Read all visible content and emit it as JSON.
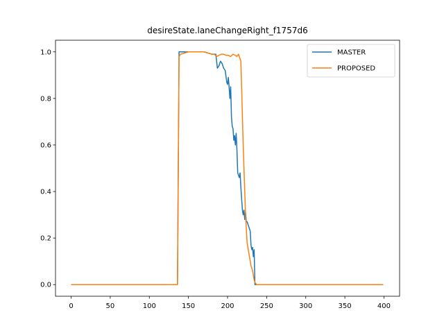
{
  "chart_data": {
    "type": "line",
    "title": "desireState.laneChangeRight_f1757d6",
    "xlabel": "",
    "ylabel": "",
    "xlim": [
      -20,
      420
    ],
    "ylim": [
      -0.05,
      1.05
    ],
    "xticks": [
      0,
      50,
      100,
      150,
      200,
      250,
      300,
      350,
      400
    ],
    "yticks": [
      0.0,
      0.2,
      0.4,
      0.6,
      0.8,
      1.0
    ],
    "xtick_labels": [
      "0",
      "50",
      "100",
      "150",
      "200",
      "250",
      "300",
      "350",
      "400"
    ],
    "ytick_labels": [
      "0.0",
      "0.2",
      "0.4",
      "0.6",
      "0.8",
      "1.0"
    ],
    "grid": false,
    "legend_position": "top-right",
    "series": [
      {
        "name": "MASTER",
        "color": "#1f77b4",
        "x": [
          0,
          50,
          100,
          136,
          137,
          138,
          140,
          150,
          160,
          170,
          180,
          185,
          187,
          189,
          191,
          193,
          195,
          197,
          199,
          200,
          201,
          202,
          203,
          204,
          205,
          206,
          207,
          208,
          209,
          210,
          211,
          212,
          213,
          214,
          215,
          216,
          217,
          218,
          219,
          220,
          221,
          222,
          223,
          224,
          225,
          226,
          227,
          228,
          229,
          230,
          231,
          232,
          233,
          234,
          235,
          236,
          237,
          240,
          250,
          300,
          350,
          399
        ],
        "values": [
          0.0,
          0.0,
          0.0,
          0.0,
          0.5,
          1.0,
          1.0,
          1.0,
          1.0,
          1.0,
          0.99,
          0.99,
          0.93,
          0.94,
          0.96,
          0.95,
          0.93,
          0.92,
          0.87,
          0.86,
          0.89,
          0.85,
          0.8,
          0.85,
          0.72,
          0.68,
          0.67,
          0.62,
          0.64,
          0.6,
          0.65,
          0.58,
          0.48,
          0.47,
          0.46,
          0.48,
          0.42,
          0.37,
          0.32,
          0.3,
          0.32,
          0.28,
          0.31,
          0.27,
          0.27,
          0.26,
          0.25,
          0.24,
          0.23,
          0.17,
          0.15,
          0.16,
          0.12,
          0.15,
          0.0,
          0.0,
          0.0,
          0.0,
          0.0,
          0.0,
          0.0,
          0.0
        ]
      },
      {
        "name": "PROPOSED",
        "color": "#ff7f0e",
        "x": [
          0,
          50,
          100,
          136,
          137,
          138,
          140,
          150,
          160,
          170,
          180,
          183,
          186,
          189,
          192,
          195,
          198,
          201,
          204,
          207,
          210,
          212,
          214,
          216,
          217,
          218,
          219,
          220,
          221,
          222,
          223,
          224,
          225,
          226,
          227,
          228,
          229,
          230,
          231,
          232,
          233,
          234,
          235,
          236,
          237,
          238,
          240,
          250,
          300,
          350,
          399
        ],
        "values": [
          0.0,
          0.0,
          0.0,
          0.0,
          0.5,
          0.98,
          0.99,
          1.0,
          1.0,
          1.0,
          0.99,
          0.99,
          0.98,
          0.985,
          0.99,
          0.99,
          0.985,
          0.985,
          0.98,
          0.99,
          0.985,
          0.98,
          0.99,
          0.97,
          0.96,
          0.85,
          0.72,
          0.6,
          0.5,
          0.4,
          0.3,
          0.24,
          0.18,
          0.16,
          0.14,
          0.12,
          0.1,
          0.08,
          0.07,
          0.06,
          0.04,
          0.02,
          0.01,
          0.005,
          0.0,
          0.0,
          0.0,
          0.0,
          0.0,
          0.0,
          0.0
        ]
      }
    ]
  }
}
